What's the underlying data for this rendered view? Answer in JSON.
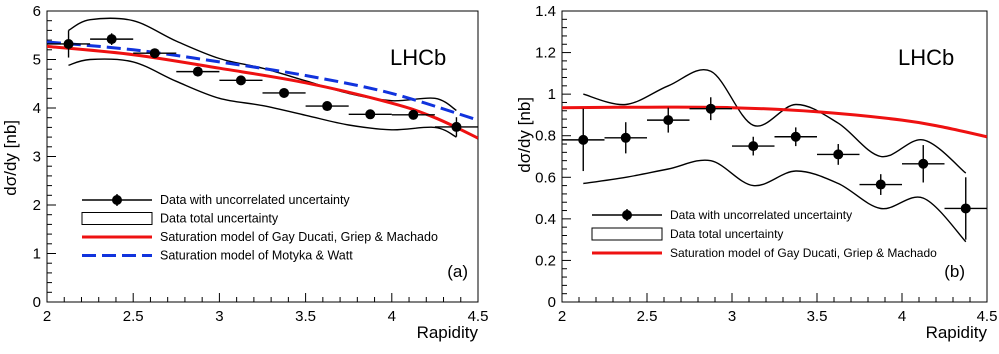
{
  "chart_data": [
    {
      "type": "scatter",
      "panel_label": "(a)",
      "watermark": "LHCb",
      "xlabel": "Rapidity",
      "ylabel": "dσ/dy [nb]",
      "xlim": [
        2,
        4.5
      ],
      "ylim": [
        0,
        6
      ],
      "xticks": [
        "2",
        "2.5",
        "3",
        "3.5",
        "4",
        "4.5"
      ],
      "yticks": [
        "0",
        "1",
        "2",
        "3",
        "4",
        "5",
        "6"
      ],
      "legend_position": "bottom-left",
      "legend": [
        "Data with uncorrelated uncertainty",
        "Data total uncertainty",
        "Saturation model of Gay Ducati, Griep & Machado",
        "Saturation model of Motyka & Watt"
      ],
      "data": {
        "x": [
          2.125,
          2.375,
          2.625,
          2.875,
          3.125,
          3.375,
          3.625,
          3.875,
          4.125,
          4.375
        ],
        "xerr": 0.125,
        "y": [
          5.32,
          5.42,
          5.13,
          4.75,
          4.57,
          4.31,
          4.04,
          3.87,
          3.86,
          3.61
        ],
        "yerr": [
          0.28,
          0.12,
          0.06,
          0.06,
          0.06,
          0.06,
          0.07,
          0.07,
          0.1,
          0.2
        ]
      },
      "band_upper": {
        "x": [
          2.125,
          2.25,
          2.5,
          2.75,
          3.0,
          3.25,
          3.5,
          3.75,
          4.0,
          4.25,
          4.375
        ],
        "y": [
          5.6,
          5.82,
          5.8,
          5.38,
          5.02,
          4.82,
          4.56,
          4.3,
          4.15,
          4.2,
          3.95
        ]
      },
      "band_lower": {
        "x": [
          2.125,
          2.25,
          2.5,
          2.75,
          3.0,
          3.25,
          3.5,
          3.75,
          4.0,
          4.25,
          4.375
        ],
        "y": [
          4.88,
          5.0,
          4.95,
          4.55,
          4.2,
          4.05,
          3.85,
          3.65,
          3.55,
          3.6,
          3.4
        ]
      },
      "model_gdgm": {
        "color": "#ee1111",
        "x": [
          2.0,
          2.5,
          3.0,
          3.5,
          4.0,
          4.25,
          4.5
        ],
        "y": [
          5.27,
          5.1,
          4.82,
          4.52,
          4.1,
          3.8,
          3.38
        ]
      },
      "model_mw": {
        "color": "#1133dd",
        "x": [
          2.0,
          2.5,
          3.0,
          3.5,
          4.0,
          4.5
        ],
        "y": [
          5.36,
          5.2,
          4.95,
          4.67,
          4.3,
          3.75
        ]
      }
    },
    {
      "type": "scatter",
      "panel_label": "(b)",
      "watermark": "LHCb",
      "xlabel": "Rapidity",
      "ylabel": "dσ/dy [nb]",
      "xlim": [
        2,
        4.5
      ],
      "ylim": [
        0,
        1.4
      ],
      "xticks": [
        "2",
        "2.5",
        "3",
        "3.5",
        "4",
        "4.5"
      ],
      "yticks": [
        "0",
        "0.2",
        "0.4",
        "0.6",
        "0.8",
        "1",
        "1.2",
        "1.4"
      ],
      "legend_position": "bottom-left",
      "legend": [
        "Data with uncorrelated uncertainty",
        "Data total uncertainty",
        "Saturation model of Gay Ducati, Griep & Machado"
      ],
      "data": {
        "x": [
          2.125,
          2.375,
          2.625,
          2.875,
          3.125,
          3.375,
          3.625,
          3.875,
          4.125,
          4.375
        ],
        "xerr": 0.125,
        "y": [
          0.78,
          0.79,
          0.875,
          0.93,
          0.75,
          0.795,
          0.71,
          0.565,
          0.665,
          0.45
        ],
        "yerr": [
          0.15,
          0.075,
          0.06,
          0.055,
          0.045,
          0.045,
          0.05,
          0.05,
          0.09,
          0.15
        ]
      },
      "band_upper": {
        "x": [
          2.125,
          2.375,
          2.625,
          2.875,
          3.125,
          3.375,
          3.625,
          3.875,
          4.125,
          4.375
        ],
        "y": [
          1.0,
          0.95,
          1.04,
          1.11,
          0.85,
          0.95,
          0.86,
          0.7,
          0.78,
          0.62
        ]
      },
      "band_lower": {
        "x": [
          2.125,
          2.375,
          2.625,
          2.875,
          3.125,
          3.375,
          3.625,
          3.875,
          4.125,
          4.375
        ],
        "y": [
          0.57,
          0.6,
          0.64,
          0.68,
          0.56,
          0.63,
          0.57,
          0.45,
          0.5,
          0.29
        ]
      },
      "model_gdgm": {
        "color": "#ee1111",
        "x": [
          2.0,
          2.5,
          3.0,
          3.5,
          4.0,
          4.25,
          4.5
        ],
        "y": [
          0.935,
          0.937,
          0.935,
          0.915,
          0.875,
          0.84,
          0.795
        ]
      }
    }
  ]
}
